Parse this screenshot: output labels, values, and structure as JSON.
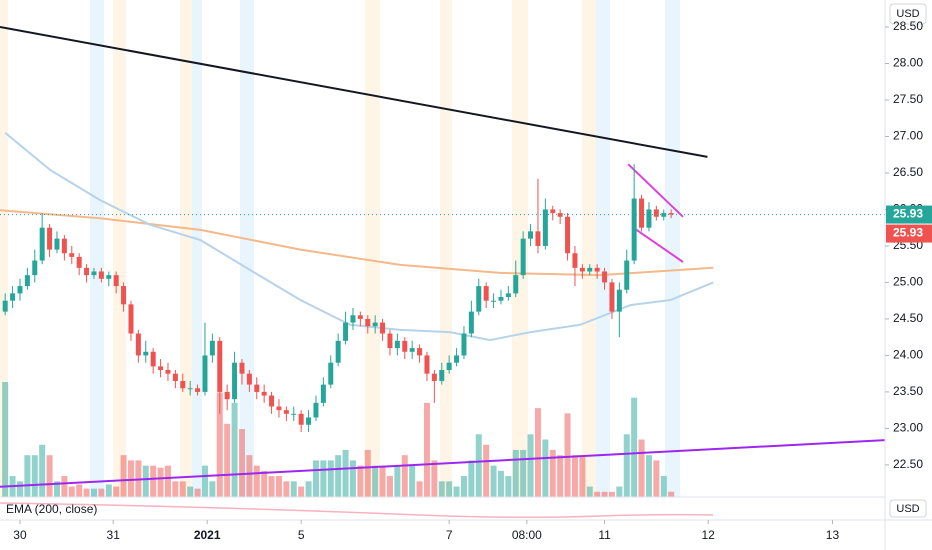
{
  "chart_data": {
    "type": "candlestick",
    "indicator_label": "EMA (200, close)",
    "currency": "USD",
    "indicator_currency": "USD",
    "xlim": [
      -0.7,
      118.9
    ],
    "ylim": [
      22.06,
      28.87
    ],
    "yticks": [
      {
        "value": 22.5,
        "label": "22.50"
      },
      {
        "value": 23,
        "label": "23.00"
      },
      {
        "value": 23.5,
        "label": "23.50"
      },
      {
        "value": 24,
        "label": "24.00"
      },
      {
        "value": 24.5,
        "label": "24.50"
      },
      {
        "value": 25,
        "label": "25.00"
      },
      {
        "value": 25.5,
        "label": "25.50"
      },
      {
        "value": 26,
        "label": "26.00"
      },
      {
        "value": 26.5,
        "label": "26.50"
      },
      {
        "value": 27,
        "label": "27.00"
      },
      {
        "value": 27.5,
        "label": "27.50"
      },
      {
        "value": 28,
        "label": "28.00"
      },
      {
        "value": 28.5,
        "label": "28.50"
      }
    ],
    "xticks": [
      {
        "value": 2,
        "label": "30"
      },
      {
        "value": 14.6,
        "label": "31"
      },
      {
        "value": 27.3,
        "label": "2021"
      },
      {
        "value": 40,
        "label": "5"
      },
      {
        "value": 60,
        "label": "7"
      },
      {
        "value": 70.5,
        "label": "08:00"
      },
      {
        "value": 81,
        "label": "11"
      },
      {
        "value": 95,
        "label": "12"
      },
      {
        "value": 111.8,
        "label": "13"
      }
    ],
    "up_color": "#26a69a",
    "down_color": "#ef5350",
    "open": [
      24.6,
      24.75,
      24.85,
      24.95,
      25.1,
      25.3,
      25.75,
      25.45,
      25.6,
      25.4,
      25.35,
      25.2,
      25.1,
      25.15,
      25.05,
      25.1,
      24.95,
      24.7,
      24.3,
      24.0,
      24.05,
      23.85,
      23.8,
      23.75,
      23.65,
      23.55,
      23.55,
      23.5,
      24.0,
      24.2,
      23.5,
      23.4,
      23.9,
      23.75,
      23.6,
      23.5,
      23.45,
      23.3,
      23.25,
      23.2,
      23.2,
      23.05,
      23.15,
      23.35,
      23.6,
      23.9,
      24.2,
      24.45,
      24.55,
      24.5,
      24.4,
      24.45,
      24.3,
      24.1,
      24.2,
      24.05,
      24.1,
      24.0,
      23.75,
      23.65,
      23.8,
      23.9,
      24.0,
      24.3,
      24.6,
      24.95,
      24.75,
      24.75,
      24.8,
      24.85,
      25.1,
      25.6,
      25.7,
      25.5,
      26.0,
      25.95,
      25.9,
      25.4,
      25.2,
      25.15,
      25.2,
      25.15,
      25.0,
      24.6,
      24.9,
      25.3,
      26.15,
      25.75,
      26.0,
      25.9,
      25.95
    ],
    "high": [
      24.85,
      24.95,
      25.05,
      25.2,
      25.45,
      25.95,
      25.8,
      25.7,
      25.65,
      25.5,
      25.4,
      25.25,
      25.2,
      25.2,
      25.15,
      25.15,
      25.0,
      24.75,
      24.35,
      24.2,
      24.1,
      23.95,
      23.9,
      23.8,
      23.75,
      23.65,
      23.6,
      24.45,
      24.3,
      24.25,
      23.6,
      24.05,
      23.95,
      23.8,
      23.7,
      23.6,
      23.5,
      23.4,
      23.3,
      23.3,
      23.25,
      23.25,
      23.45,
      23.7,
      24.0,
      24.3,
      24.6,
      24.65,
      24.6,
      24.55,
      24.55,
      24.5,
      24.35,
      24.3,
      24.25,
      24.2,
      24.15,
      24.05,
      23.8,
      23.9,
      24.0,
      24.1,
      24.4,
      24.75,
      25.05,
      25.0,
      24.85,
      24.9,
      24.95,
      25.3,
      25.7,
      25.8,
      26.42,
      26.15,
      26.05,
      26.0,
      25.95,
      25.5,
      25.25,
      25.25,
      25.25,
      25.2,
      25.05,
      25.0,
      25.45,
      26.62,
      26.2,
      26.1,
      26.05,
      26.0,
      26.0
    ],
    "low": [
      24.55,
      24.65,
      24.75,
      24.9,
      25.0,
      25.25,
      25.35,
      25.4,
      25.3,
      25.25,
      25.1,
      25.0,
      25.05,
      25.0,
      24.95,
      24.85,
      24.6,
      24.2,
      23.9,
      23.9,
      23.75,
      23.7,
      23.65,
      23.55,
      23.5,
      23.45,
      23.45,
      23.45,
      23.9,
      23.2,
      23.25,
      23.35,
      23.6,
      23.5,
      23.4,
      23.35,
      23.2,
      23.15,
      23.1,
      23.1,
      22.95,
      22.95,
      23.1,
      23.3,
      23.55,
      23.85,
      24.15,
      24.35,
      24.4,
      24.3,
      24.3,
      24.2,
      24.0,
      24.0,
      23.95,
      23.95,
      23.9,
      23.65,
      23.35,
      23.6,
      23.75,
      23.85,
      23.95,
      24.25,
      24.55,
      24.65,
      24.65,
      24.7,
      24.75,
      24.8,
      25.05,
      25.5,
      25.4,
      25.45,
      25.85,
      25.8,
      25.3,
      24.95,
      25.05,
      25.1,
      25.05,
      24.9,
      24.5,
      24.25,
      24.85,
      25.25,
      25.7,
      25.7,
      25.85,
      25.85,
      25.88
    ],
    "close": [
      24.75,
      24.85,
      24.95,
      25.1,
      25.3,
      25.75,
      25.45,
      25.6,
      25.4,
      25.35,
      25.2,
      25.1,
      25.15,
      25.05,
      25.1,
      24.95,
      24.7,
      24.3,
      24.0,
      24.05,
      23.85,
      23.8,
      23.75,
      23.65,
      23.55,
      23.55,
      23.5,
      24.0,
      24.2,
      23.5,
      23.4,
      23.9,
      23.75,
      23.6,
      23.5,
      23.45,
      23.3,
      23.25,
      23.2,
      23.2,
      23.05,
      23.15,
      23.35,
      23.6,
      23.9,
      24.2,
      24.45,
      24.55,
      24.5,
      24.4,
      24.45,
      24.3,
      24.1,
      24.2,
      24.05,
      24.1,
      24.0,
      23.75,
      23.65,
      23.8,
      23.9,
      24.0,
      24.3,
      24.6,
      24.95,
      24.75,
      24.75,
      24.8,
      24.85,
      25.1,
      25.6,
      25.7,
      25.5,
      26.0,
      25.95,
      25.9,
      25.4,
      25.2,
      25.15,
      25.2,
      25.15,
      25.0,
      24.6,
      24.9,
      25.3,
      26.15,
      25.75,
      26.0,
      25.9,
      25.95,
      25.93
    ],
    "volume": [
      110,
      20,
      15,
      40,
      40,
      50,
      40,
      15,
      20,
      10,
      12,
      8,
      8,
      8,
      12,
      10,
      40,
      35,
      35,
      30,
      30,
      28,
      30,
      15,
      15,
      10,
      8,
      30,
      15,
      100,
      70,
      90,
      65,
      40,
      30,
      25,
      20,
      20,
      15,
      15,
      10,
      15,
      35,
      35,
      35,
      40,
      45,
      35,
      30,
      45,
      30,
      30,
      20,
      30,
      40,
      30,
      15,
      90,
      35,
      15,
      15,
      10,
      20,
      35,
      60,
      50,
      30,
      25,
      20,
      45,
      45,
      60,
      85,
      55,
      45,
      40,
      80,
      40,
      40,
      10,
      5,
      5,
      5,
      10,
      60,
      95,
      55,
      40,
      35,
      20,
      5
    ],
    "lines": [
      {
        "color": "#f5b88a",
        "x": [
          -0.7,
          12.8,
          26.4,
          39.9,
          53.4,
          66.9,
          80.4,
          95.7
        ],
        "values": [
          25.99,
          25.88,
          25.72,
          25.45,
          25.24,
          25.13,
          25.1,
          25.2
        ]
      },
      {
        "color": "#b7d3ea",
        "x": [
          0,
          6.1,
          12.8,
          19.6,
          26.4,
          33.1,
          39.9,
          46.6,
          53.4,
          60.1,
          65.5,
          71.0,
          77.7,
          84.5,
          89.9,
          95.7
        ],
        "values": [
          27.05,
          26.54,
          26.13,
          25.79,
          25.58,
          25.17,
          24.76,
          24.42,
          24.35,
          24.32,
          24.21,
          24.32,
          24.42,
          24.69,
          24.76,
          25.0
        ]
      },
      {
        "color": "#131722",
        "x": [
          -0.7,
          94.9
        ],
        "values": [
          28.5,
          26.72
        ]
      },
      {
        "color": "#9c27f0",
        "x": [
          -0.7,
          118.9
        ],
        "values": [
          22.2,
          22.84
        ]
      },
      {
        "color": "#e040d8",
        "x": [
          84.2,
          91.6
        ],
        "values": [
          26.62,
          25.9
        ]
      },
      {
        "color": "#e040d8",
        "x": [
          84.9,
          91.6
        ],
        "values": [
          25.75,
          25.28
        ]
      }
    ],
    "price_labels": [
      {
        "value": 25.93,
        "color": "#26a69a"
      },
      {
        "value": 25.93,
        "color": "#ef5350"
      }
    ]
  }
}
